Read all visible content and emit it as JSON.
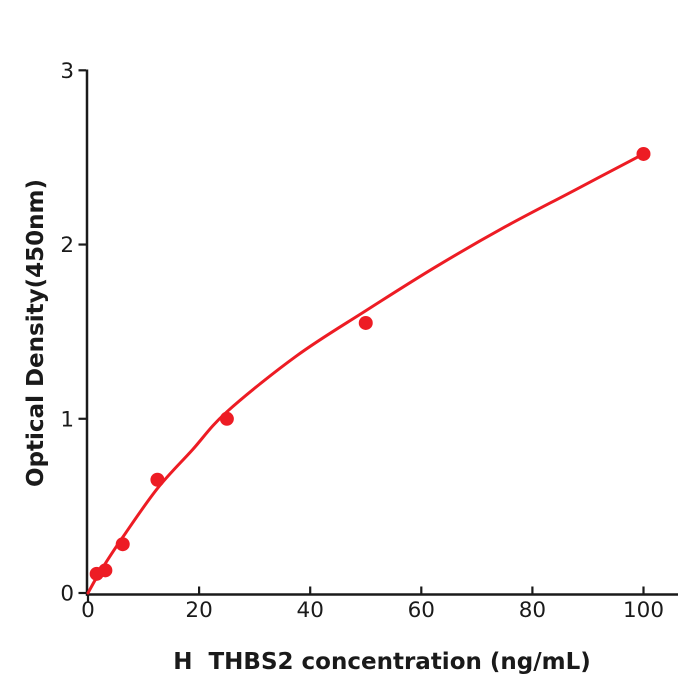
{
  "figure": {
    "background": "#ffffff"
  },
  "chart_data": {
    "type": "scatter",
    "title": "",
    "xlabel": "H  THBS2 concentration (ng/mL)",
    "ylabel": "Optical Density(450nm)",
    "x": [
      1.5625,
      3.125,
      6.25,
      12.5,
      25,
      50,
      100
    ],
    "y": [
      0.11,
      0.13,
      0.28,
      0.65,
      1.0,
      1.55,
      2.52
    ],
    "fit_curve": [
      [
        0,
        0
      ],
      [
        1.5625,
        0.09
      ],
      [
        3.125,
        0.17
      ],
      [
        6.25,
        0.32
      ],
      [
        12.5,
        0.6
      ],
      [
        18.75,
        0.82
      ],
      [
        25,
        1.04
      ],
      [
        37.5,
        1.36
      ],
      [
        50,
        1.62
      ],
      [
        62.5,
        1.87
      ],
      [
        75,
        2.1
      ],
      [
        87.5,
        2.31
      ],
      [
        100,
        2.52
      ]
    ],
    "xticks": [
      0,
      20,
      40,
      60,
      80,
      100
    ],
    "yticks": [
      0,
      1,
      2,
      3
    ],
    "xlim": [
      0,
      106.3
    ],
    "ylim": [
      0,
      3
    ],
    "grid": false,
    "legend": "none",
    "point_color": "#ed1c24",
    "line_color": "#ed1c24",
    "axis_color": "#1a1a1a",
    "tick_label_color": "#1a1a1a"
  }
}
